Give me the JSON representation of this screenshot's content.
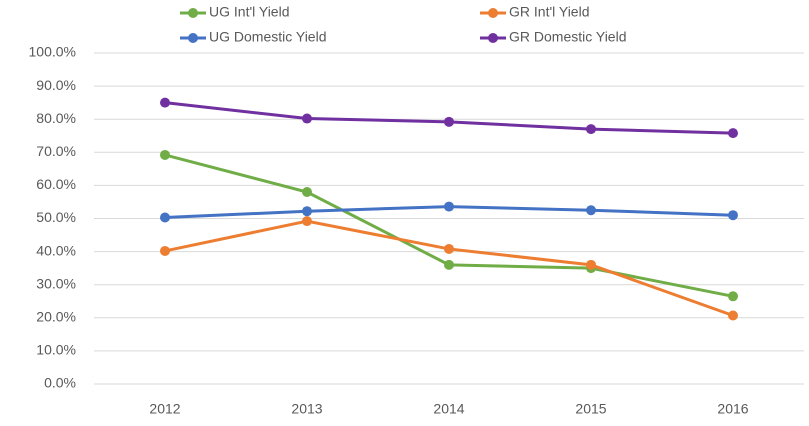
{
  "chart_data": {
    "type": "line",
    "categories": [
      "2012",
      "2013",
      "2014",
      "2015",
      "2016"
    ],
    "series": [
      {
        "name": "UG Int'l Yield",
        "color": "#70ad47",
        "values": [
          69.2,
          58.0,
          36.0,
          35.0,
          26.5
        ]
      },
      {
        "name": "GR Int'l Yield",
        "color": "#ed7d31",
        "values": [
          40.2,
          49.2,
          40.8,
          36.0,
          20.7
        ]
      },
      {
        "name": "UG Domestic Yield",
        "color": "#4472c4",
        "values": [
          50.3,
          52.2,
          53.6,
          52.5,
          51.0
        ]
      },
      {
        "name": "GR Domestic Yield",
        "color": "#7030a0",
        "values": [
          85.0,
          80.2,
          79.2,
          77.0,
          75.8
        ]
      }
    ],
    "ylim": [
      0,
      100
    ],
    "yticks": [
      {
        "value": 0,
        "label": "0.0%"
      },
      {
        "value": 10,
        "label": "10.0%"
      },
      {
        "value": 20,
        "label": "20.0%"
      },
      {
        "value": 30,
        "label": "30.0%"
      },
      {
        "value": 40,
        "label": "40.0%"
      },
      {
        "value": 50,
        "label": "50.0%"
      },
      {
        "value": 60,
        "label": "60.0%"
      },
      {
        "value": 70,
        "label": "70.0%"
      },
      {
        "value": 80,
        "label": "80.0%"
      },
      {
        "value": 90,
        "label": "90.0%"
      },
      {
        "value": 100,
        "label": "100.0%"
      }
    ],
    "grid": true,
    "legend": "top"
  }
}
